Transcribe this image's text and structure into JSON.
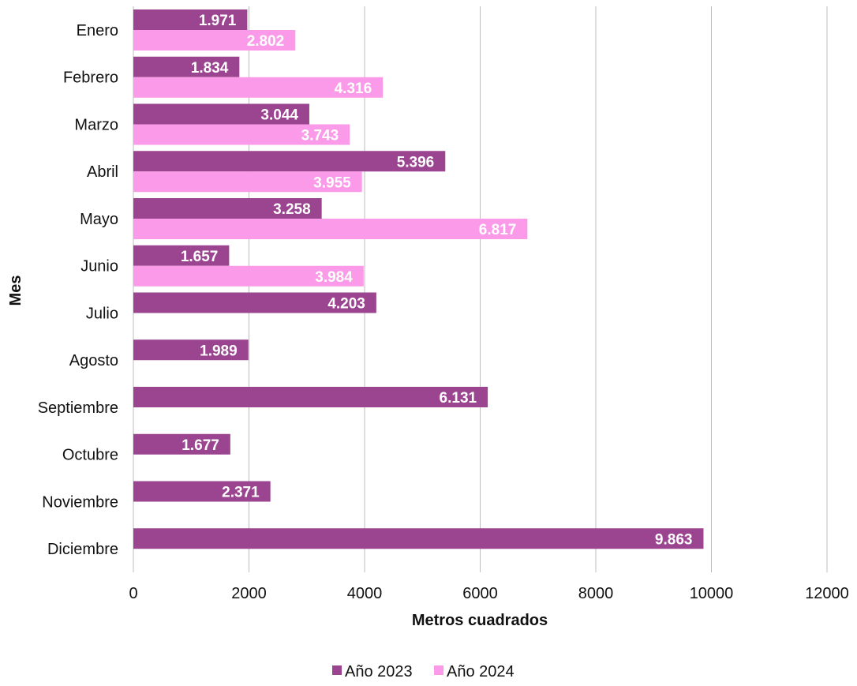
{
  "chart_data": {
    "type": "bar",
    "orientation": "horizontal",
    "categories": [
      "Enero",
      "Febrero",
      "Marzo",
      "Abril",
      "Mayo",
      "Junio",
      "Julio",
      "Agosto",
      "Septiembre",
      "Octubre",
      "Noviembre",
      "Diciembre"
    ],
    "series": [
      {
        "name": "Año 2023",
        "color": "#9b4591",
        "values": [
          1971,
          1834,
          3044,
          5396,
          3258,
          1657,
          4203,
          1989,
          6131,
          1677,
          2371,
          9863
        ],
        "labels": [
          "1.971",
          "1.834",
          "3.044",
          "5.396",
          "3.258",
          "1.657",
          "4.203",
          "1.989",
          "6.131",
          "1.677",
          "2.371",
          "9.863"
        ]
      },
      {
        "name": "Año 2024",
        "color": "#fb9ae8",
        "values": [
          2802,
          4316,
          3743,
          3955,
          6817,
          3984,
          null,
          null,
          null,
          null,
          null,
          null
        ],
        "labels": [
          "2.802",
          "4.316",
          "3.743",
          "3.955",
          "6.817",
          "3.984",
          "",
          "",
          "",
          "",
          "",
          ""
        ]
      }
    ],
    "xlabel": "Metros cuadrados",
    "ylabel": "Mes",
    "xlim": [
      0,
      12000
    ],
    "xticks": [
      0,
      2000,
      4000,
      6000,
      8000,
      10000,
      12000
    ],
    "grid": "vertical",
    "legend": "bottom-center"
  }
}
